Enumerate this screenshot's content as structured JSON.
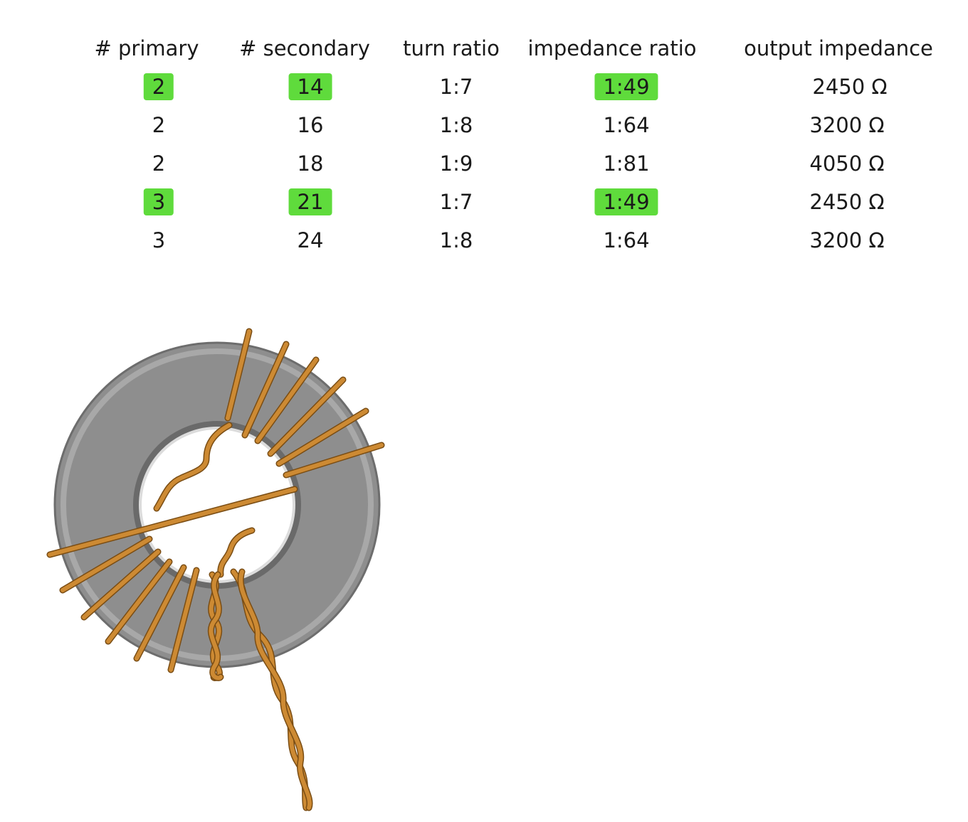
{
  "table": {
    "headers": [
      "# primary",
      "# secondary",
      "turn ratio",
      "impedance ratio",
      "output impedance"
    ],
    "rows": [
      {
        "primary": "2",
        "secondary": "14",
        "turn_ratio": "1:7",
        "impedance_ratio": "1:49",
        "output_impedance": "2450 Ω",
        "highlighted": true
      },
      {
        "primary": "2",
        "secondary": "16",
        "turn_ratio": "1:8",
        "impedance_ratio": "1:64",
        "output_impedance": "3200 Ω",
        "highlighted": false
      },
      {
        "primary": "2",
        "secondary": "18",
        "turn_ratio": "1:9",
        "impedance_ratio": "1:81",
        "output_impedance": "4050 Ω",
        "highlighted": false
      },
      {
        "primary": "3",
        "secondary": "21",
        "turn_ratio": "1:7",
        "impedance_ratio": "1:49",
        "output_impedance": "2450 Ω",
        "highlighted": true
      },
      {
        "primary": "3",
        "secondary": "24",
        "turn_ratio": "1:8",
        "impedance_ratio": "1:64",
        "output_impedance": "3200 Ω",
        "highlighted": false
      }
    ]
  },
  "colors": {
    "highlight": "#5fdb3c",
    "core": "#8e8e8e",
    "wire": "#cd8a33",
    "wire_dark": "#7a4d14"
  },
  "figure": {
    "name": "toroidal-transformer"
  }
}
